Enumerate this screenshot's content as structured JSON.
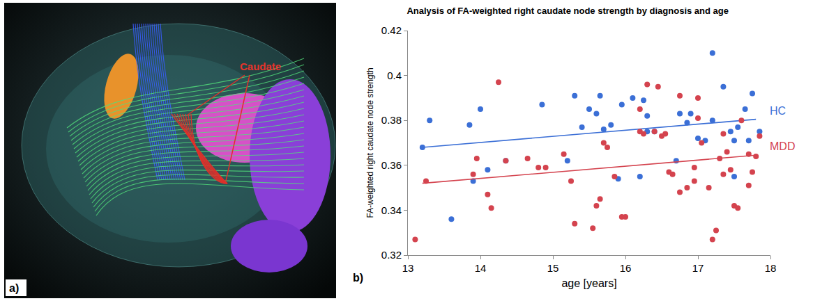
{
  "panel_a": {
    "label": "a)",
    "annotation": "Caudate"
  },
  "chart_data": {
    "type": "scatter",
    "panel_label": "b)",
    "title": "Analysis of FA-weighted right caudate node strength by diagnosis and age",
    "x_label": "age [years]",
    "y_label": "FA-weighted right caudate node strength",
    "xlim": [
      13,
      18
    ],
    "xticks": [
      13,
      14,
      15,
      16,
      17,
      18
    ],
    "ylim": [
      0.32,
      0.42
    ],
    "yticks": [
      0.32,
      0.34,
      0.36,
      0.38,
      0.4,
      0.42
    ],
    "grid": false,
    "series": [
      {
        "name": "HC",
        "color": "#3b6fd6",
        "marker": "circle",
        "x": [
          13.2,
          13.3,
          13.6,
          13.85,
          13.9,
          14.0,
          14.1,
          14.35,
          14.85,
          15.2,
          15.3,
          15.4,
          15.5,
          15.6,
          15.65,
          15.7,
          15.8,
          15.9,
          15.95,
          16.1,
          16.2,
          16.25,
          16.3,
          16.3,
          16.4,
          16.7,
          16.75,
          16.85,
          16.9,
          17.0,
          17.1,
          17.2,
          17.2,
          17.35,
          17.45,
          17.5,
          17.5,
          17.55,
          17.65,
          17.75,
          17.7,
          17.85
        ],
        "values": [
          0.368,
          0.38,
          0.336,
          0.378,
          0.353,
          0.385,
          0.358,
          0.362,
          0.387,
          0.362,
          0.391,
          0.377,
          0.385,
          0.383,
          0.391,
          0.376,
          0.378,
          0.354,
          0.387,
          0.39,
          0.355,
          0.389,
          0.382,
          0.375,
          0.375,
          0.362,
          0.383,
          0.379,
          0.383,
          0.372,
          0.371,
          0.41,
          0.38,
          0.395,
          0.375,
          0.371,
          0.355,
          0.377,
          0.385,
          0.392,
          0.371,
          0.375
        ],
        "trend": {
          "x": [
            13.2,
            17.8
          ],
          "values": [
            0.368,
            0.3805
          ]
        }
      },
      {
        "name": "MDD",
        "color": "#d4434e",
        "marker": "circle",
        "x": [
          13.1,
          13.25,
          13.9,
          13.95,
          14.1,
          14.15,
          14.25,
          14.35,
          14.65,
          14.8,
          14.9,
          15.15,
          15.25,
          15.3,
          15.55,
          15.6,
          15.65,
          15.7,
          15.75,
          15.85,
          15.95,
          16.0,
          16.2,
          16.2,
          16.25,
          16.3,
          16.4,
          16.45,
          16.5,
          16.55,
          16.6,
          16.65,
          16.75,
          16.75,
          16.85,
          16.95,
          16.95,
          17.0,
          17.0,
          17.05,
          17.15,
          17.2,
          17.25,
          17.3,
          17.35,
          17.35,
          17.4,
          17.45,
          17.5,
          17.55,
          17.6,
          17.7,
          17.7,
          17.75,
          17.8,
          17.85
        ],
        "values": [
          0.327,
          0.353,
          0.356,
          0.363,
          0.347,
          0.341,
          0.397,
          0.362,
          0.363,
          0.359,
          0.359,
          0.365,
          0.353,
          0.334,
          0.332,
          0.342,
          0.345,
          0.37,
          0.368,
          0.355,
          0.337,
          0.337,
          0.385,
          0.375,
          0.374,
          0.396,
          0.375,
          0.395,
          0.373,
          0.374,
          0.357,
          0.356,
          0.391,
          0.348,
          0.35,
          0.353,
          0.359,
          0.381,
          0.39,
          0.37,
          0.35,
          0.327,
          0.331,
          0.363,
          0.356,
          0.374,
          0.366,
          0.358,
          0.342,
          0.341,
          0.38,
          0.351,
          0.365,
          0.357,
          0.364,
          0.373
        ],
        "trend": {
          "x": [
            13.2,
            17.8
          ],
          "values": [
            0.352,
            0.3645
          ]
        }
      }
    ]
  }
}
